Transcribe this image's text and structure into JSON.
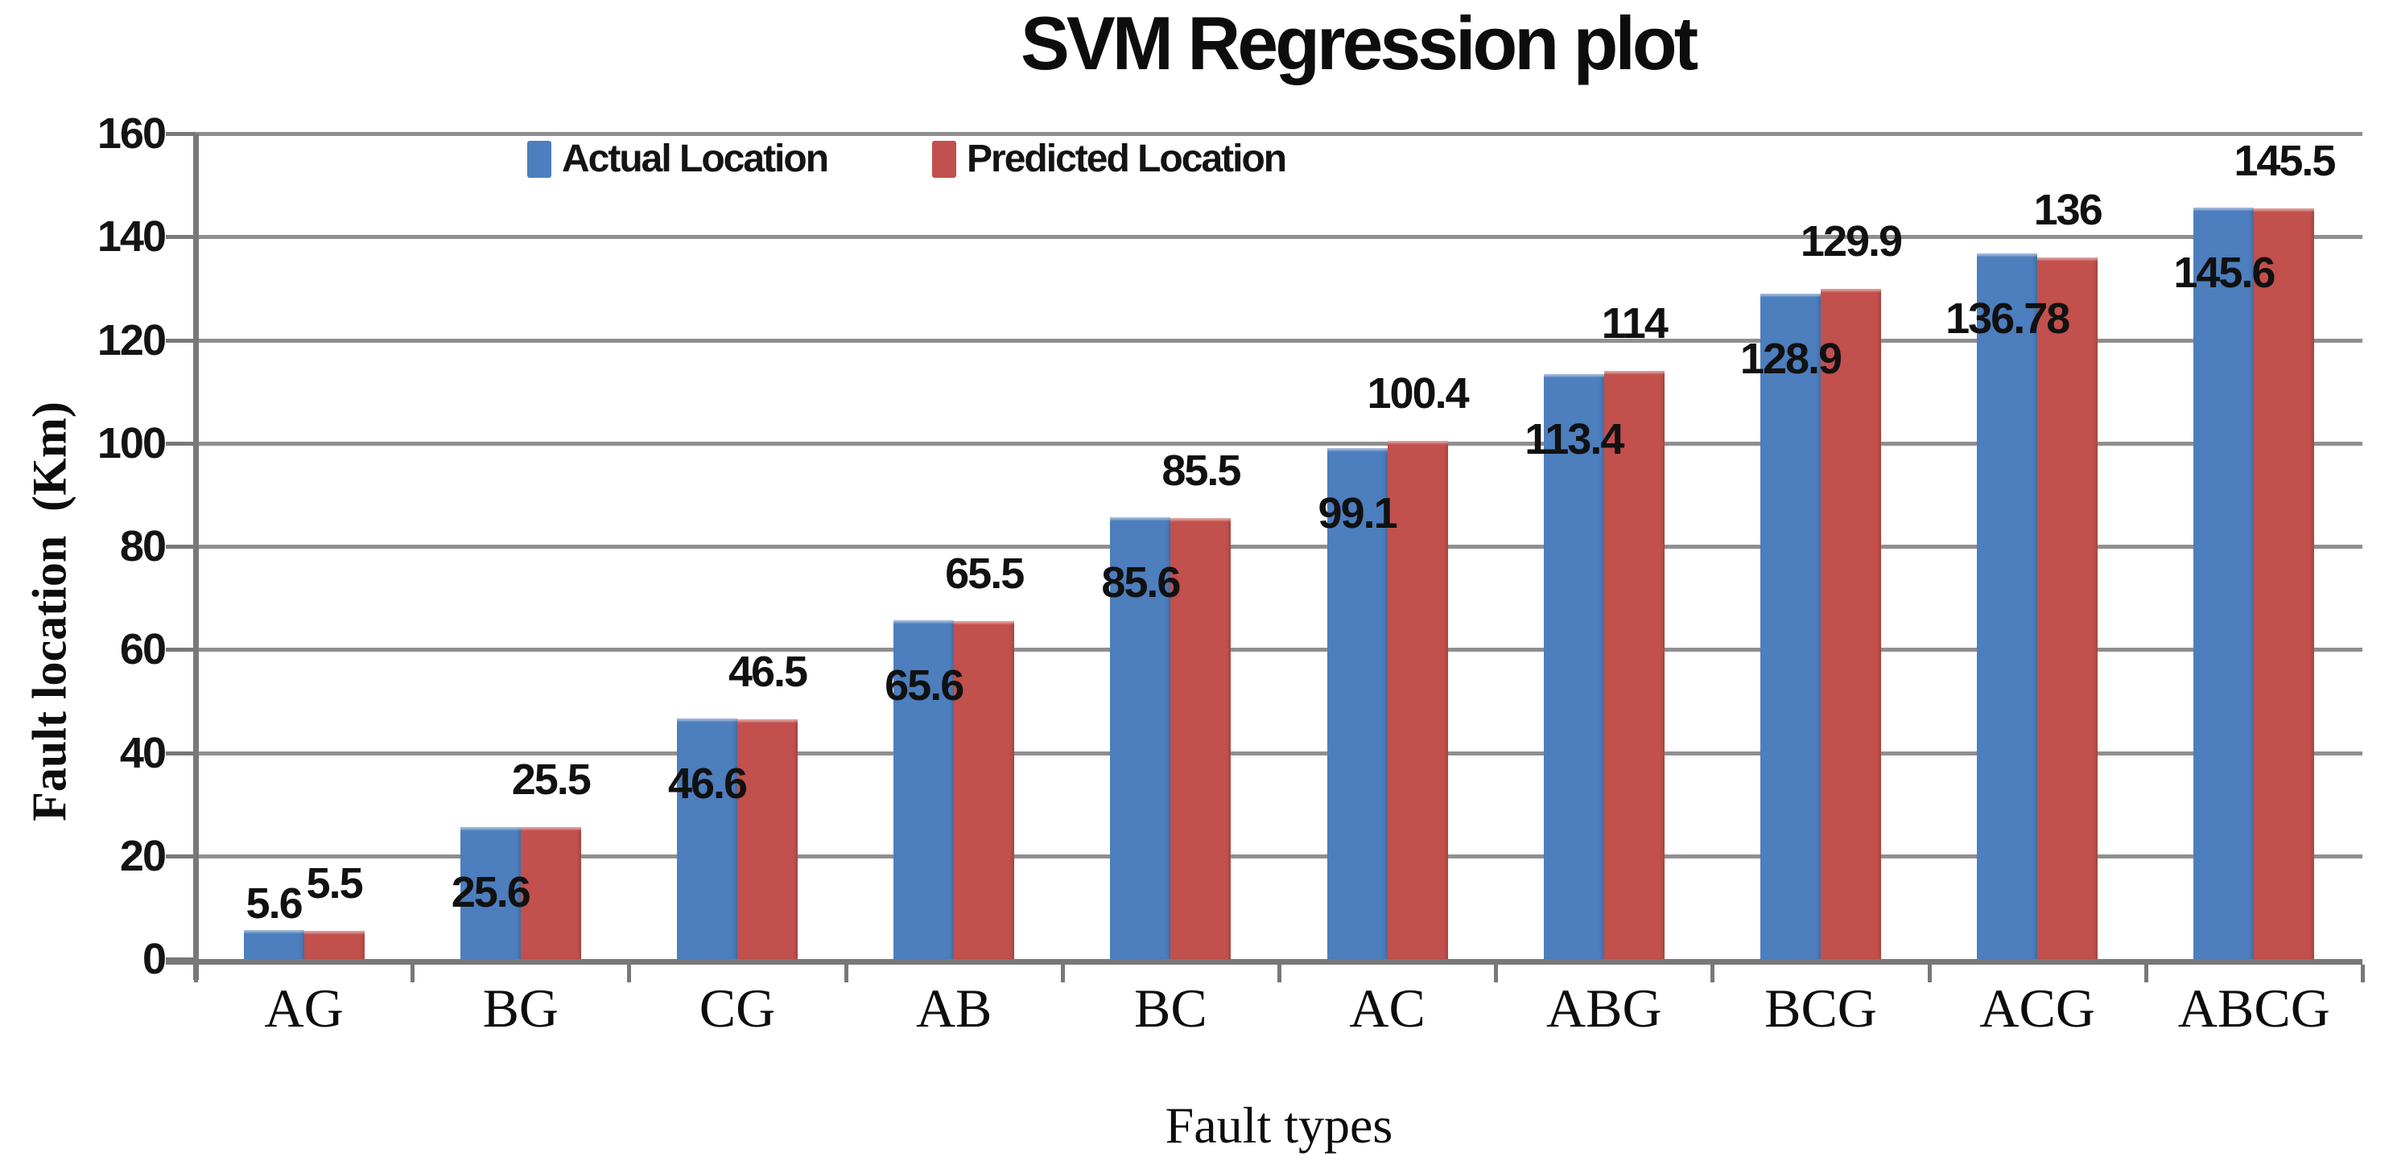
{
  "colors": {
    "actual": "#4D7EBD",
    "predicted": "#C2504D",
    "gridline": "#8F8F8F",
    "axis": "#787878",
    "label": "#111111",
    "background": "#FFFFFF"
  },
  "legend": {
    "items": [
      {
        "label": "Actual Location",
        "color": "#4D7EBD"
      },
      {
        "label": "Predicted Location",
        "color": "#C2504D"
      }
    ]
  },
  "chart_data": {
    "type": "bar",
    "title": "SVM Regression plot",
    "xlabel": "Fault types",
    "ylabel": "Fault location  (Km)",
    "categories": [
      "AG",
      "BG",
      "CG",
      "AB",
      "BC",
      "AC",
      "ABG",
      "BCG",
      "ACG",
      "ABCG"
    ],
    "series": [
      {
        "name": "Actual Location",
        "color": "#4D7EBD",
        "values": [
          5.6,
          25.6,
          46.6,
          65.6,
          85.6,
          99.1,
          113.4,
          128.9,
          136.78,
          145.6
        ],
        "labels": [
          "5.6",
          "25.6",
          "46.6",
          "65.6",
          "85.6",
          "99.1",
          "113.4",
          "128.9",
          "136.78",
          "145.6"
        ]
      },
      {
        "name": "Predicted Location",
        "color": "#C2504D",
        "values": [
          5.5,
          25.5,
          46.5,
          65.5,
          85.5,
          100.4,
          114,
          129.9,
          136,
          145.5
        ],
        "labels": [
          "5.5",
          "25.5",
          "46.5",
          "65.5",
          "85.5",
          "100.4",
          "114",
          "129.9",
          "136",
          "145.5"
        ]
      }
    ],
    "ylim": [
      0,
      160
    ],
    "yticks": [
      0,
      20,
      40,
      60,
      80,
      100,
      120,
      140,
      160
    ],
    "grid": true,
    "data_labels": true,
    "legend_position": "top-inside"
  }
}
